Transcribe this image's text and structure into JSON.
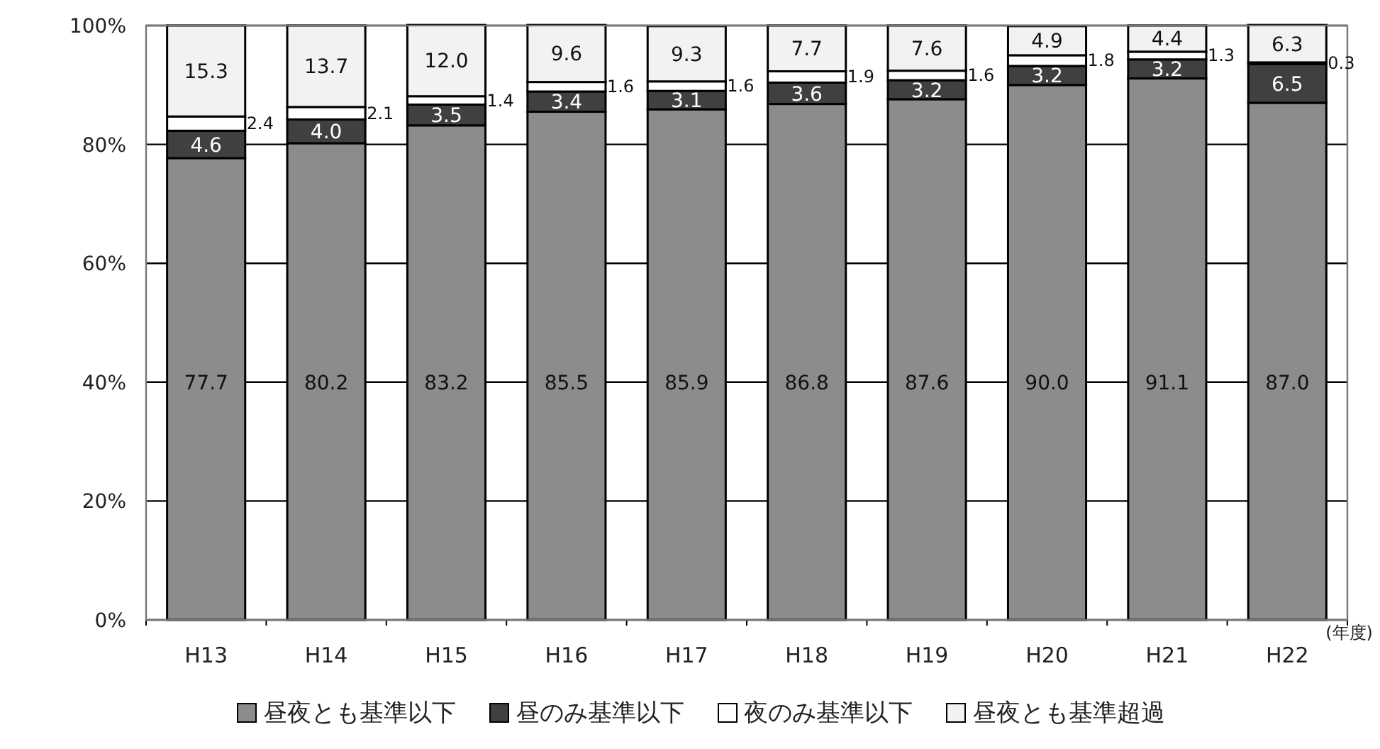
{
  "chart_data": {
    "type": "bar",
    "stacked": true,
    "categories": [
      "H13",
      "H14",
      "H15",
      "H16",
      "H17",
      "H18",
      "H19",
      "H20",
      "H21",
      "H22"
    ],
    "series": [
      {
        "name": "昼夜とも基準以下",
        "color": "#8c8c8c",
        "values": [
          77.7,
          80.2,
          83.2,
          85.5,
          85.9,
          86.8,
          87.6,
          90.0,
          91.1,
          87.0
        ],
        "value_labels": [
          "77.7",
          "80.2",
          "83.2",
          "85.5",
          "85.9",
          "86.8",
          "87.6",
          "90.0",
          "91.1",
          "87.0"
        ]
      },
      {
        "name": "昼のみ基準以下",
        "color": "#404040",
        "values": [
          4.6,
          4.0,
          3.5,
          3.4,
          3.1,
          3.6,
          3.2,
          3.2,
          3.2,
          6.5
        ],
        "value_labels": [
          "4.6",
          "4.0",
          "3.5",
          "3.4",
          "3.1",
          "3.6",
          "3.2",
          "3.2",
          "3.2",
          "6.5"
        ]
      },
      {
        "name": "夜のみ基準以下",
        "color": "#ffffff",
        "values": [
          2.4,
          2.1,
          1.4,
          1.6,
          1.6,
          1.9,
          1.6,
          1.8,
          1.3,
          0.3
        ],
        "value_labels": [
          "2.4",
          "2.1",
          "1.4",
          "1.6",
          "1.6",
          "1.9",
          "1.6",
          "1.8",
          "1.3",
          "0.3"
        ]
      },
      {
        "name": "昼夜とも基準超過",
        "color": "#f2f2f2",
        "values": [
          15.3,
          13.7,
          12.0,
          9.6,
          9.3,
          7.7,
          7.6,
          4.9,
          4.4,
          6.3
        ],
        "value_labels": [
          "15.3",
          "13.7",
          "12.0",
          "9.6",
          "9.3",
          "7.7",
          "7.6",
          "4.9",
          "4.4",
          "6.3"
        ]
      }
    ],
    "ylim": [
      0,
      100
    ],
    "yticks": [
      {
        "value": 0,
        "label": "0%"
      },
      {
        "value": 20,
        "label": "20%"
      },
      {
        "value": 40,
        "label": "40%"
      },
      {
        "value": 60,
        "label": "60%"
      },
      {
        "value": 80,
        "label": "80%"
      },
      {
        "value": 100,
        "label": "100%"
      }
    ],
    "grid": "y",
    "legend": "bottom",
    "annotations": [
      "(年度)"
    ]
  }
}
